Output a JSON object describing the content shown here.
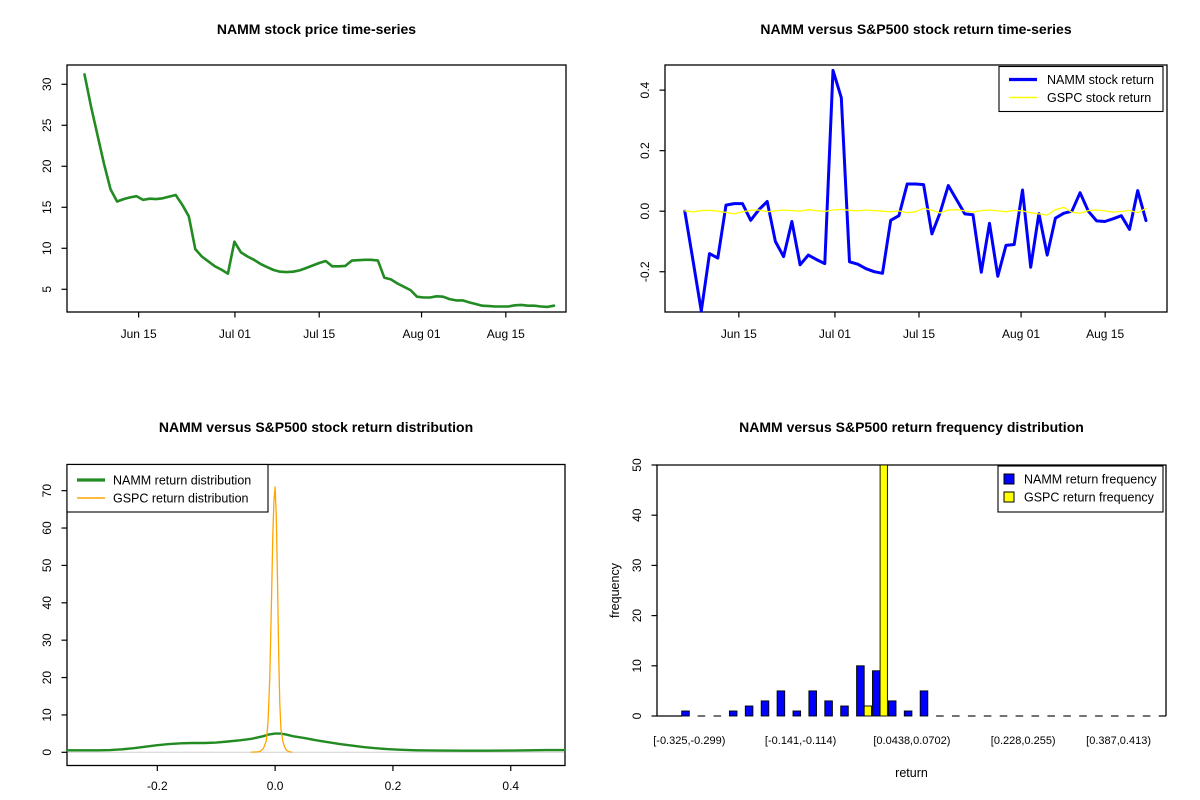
{
  "colors": {
    "namm_green": "#228B22",
    "namm_blue": "#0000FF",
    "gspc_yellow": "#FFFF00",
    "gspc_orange": "#FFA500",
    "axis_black": "#000000",
    "zero_gray": "#CFCFCF",
    "background": "#FFFFFF"
  },
  "chart_data": [
    {
      "id": "price",
      "type": "line",
      "title": "NAMM stock price time-series",
      "x_ticks": [
        {
          "label": "Jun 15",
          "v": 9
        },
        {
          "label": "Jul 01",
          "v": 25
        },
        {
          "label": "Jul 15",
          "v": 39
        },
        {
          "label": "Aug 01",
          "v": 56
        },
        {
          "label": "Aug 15",
          "v": 70
        }
      ],
      "y_ticks": [
        {
          "label": "5",
          "v": 5
        },
        {
          "label": "10",
          "v": 10
        },
        {
          "label": "15",
          "v": 15
        },
        {
          "label": "20",
          "v": 20
        },
        {
          "label": "25",
          "v": 25
        },
        {
          "label": "30",
          "v": 30
        }
      ],
      "xlim": [
        -2.9,
        80
      ],
      "ylim": [
        2.23,
        32.35
      ],
      "series": [
        {
          "name": "NAMM stock price",
          "color": "namm_green",
          "width": 2.6,
          "x_start": 0,
          "x_end": 78,
          "values": [
            31.2,
            27.3,
            23.8,
            20.3,
            17.2,
            15.7,
            16.0,
            16.2,
            16.35,
            15.9,
            16.05,
            16.0,
            16.1,
            16.3,
            16.5,
            15.3,
            13.9,
            9.9,
            9.0,
            8.4,
            7.8,
            7.4,
            6.9,
            10.8,
            9.5,
            9.0,
            8.6,
            8.1,
            7.7,
            7.35,
            7.15,
            7.1,
            7.15,
            7.3,
            7.6,
            7.9,
            8.2,
            8.45,
            7.8,
            7.8,
            7.85,
            8.5,
            8.55,
            8.6,
            8.6,
            8.5,
            6.4,
            6.2,
            5.7,
            5.3,
            4.9,
            4.1,
            4.0,
            4.0,
            4.15,
            4.1,
            3.8,
            3.65,
            3.65,
            3.4,
            3.2,
            3.0,
            2.95,
            2.9,
            2.9,
            2.9,
            3.05,
            3.1,
            3.0,
            3.0,
            2.9,
            2.85,
            3.0
          ]
        }
      ]
    },
    {
      "id": "returns",
      "type": "line",
      "title": "NAMM versus S&P500 stock return time-series",
      "x_ticks": [
        {
          "label": "Jun 15",
          "v": 9
        },
        {
          "label": "Jul 01",
          "v": 25
        },
        {
          "label": "Jul 15",
          "v": 39
        },
        {
          "label": "Aug 01",
          "v": 56
        },
        {
          "label": "Aug 15",
          "v": 70
        }
      ],
      "y_ticks": [
        {
          "label": "-0.2",
          "v": -0.2
        },
        {
          "label": "0.0",
          "v": 0.0
        },
        {
          "label": "0.2",
          "v": 0.2
        },
        {
          "label": "0.4",
          "v": 0.4
        }
      ],
      "xlim": [
        -3.3,
        80.3
      ],
      "ylim": [
        -0.333,
        0.483
      ],
      "legend": {
        "position": "topright",
        "items": [
          {
            "label": "NAMM stock return",
            "color": "namm_blue",
            "sample": "line",
            "width": 3.2
          },
          {
            "label": "GSPC stock return",
            "color": "gspc_yellow",
            "sample": "line",
            "width": 1.4
          }
        ]
      },
      "series": [
        {
          "name": "NAMM stock return",
          "color": "namm_blue",
          "width": 3,
          "x_start": 0,
          "x_end": 76.8,
          "values": [
            0.0,
            -0.165,
            -0.33,
            -0.14,
            -0.155,
            0.02,
            0.025,
            0.025,
            -0.03,
            0.005,
            0.032,
            -0.1,
            -0.15,
            -0.034,
            -0.177,
            -0.145,
            -0.16,
            -0.173,
            0.465,
            0.375,
            -0.167,
            -0.175,
            -0.19,
            -0.2,
            -0.205,
            -0.03,
            -0.015,
            0.09,
            0.09,
            0.088,
            -0.075,
            -0.005,
            0.085,
            0.038,
            -0.009,
            -0.012,
            -0.202,
            -0.04,
            -0.215,
            -0.113,
            -0.11,
            0.07,
            -0.185,
            -0.008,
            -0.145,
            -0.023,
            -0.007,
            0.0,
            0.061,
            0.0,
            -0.032,
            -0.034,
            -0.025,
            -0.015,
            -0.06,
            0.068,
            -0.031
          ]
        },
        {
          "name": "GSPC stock return",
          "color": "gspc_yellow",
          "width": 1.3,
          "x_start": 0,
          "x_end": 76.8,
          "values": [
            0.001,
            -0.002,
            0.002,
            0.003,
            0.0,
            -0.004,
            -0.009,
            -0.002,
            0.003,
            0.004,
            -0.002,
            0.001,
            0.004,
            0.002,
            0.0,
            0.005,
            0.002,
            -0.001,
            0.004,
            0.006,
            0.003,
            0.001,
            0.004,
            0.002,
            0.0,
            -0.002,
            0.001,
            -0.005,
            -0.002,
            0.01,
            0.003,
            -0.006,
            0.004,
            0.005,
            0.001,
            -0.003,
            0.002,
            0.004,
            0.001,
            -0.002,
            0.003,
            0.001,
            -0.005,
            -0.009,
            -0.013,
            0.005,
            0.013,
            -0.003,
            -0.007,
            0.002,
            0.004,
            0.001,
            -0.003,
            -0.001,
            0.003,
            -0.005,
            0.009
          ]
        }
      ]
    },
    {
      "id": "distribution",
      "type": "density",
      "title": "NAMM versus S&P500 stock return distribution",
      "x_ticks": [
        {
          "label": "-0.2",
          "v": -0.2
        },
        {
          "label": "0.0",
          "v": 0.0
        },
        {
          "label": "0.2",
          "v": 0.2
        },
        {
          "label": "0.4",
          "v": 0.4
        }
      ],
      "y_ticks": [
        {
          "label": "0",
          "v": 0
        },
        {
          "label": "10",
          "v": 10
        },
        {
          "label": "20",
          "v": 20
        },
        {
          "label": "30",
          "v": 30
        },
        {
          "label": "40",
          "v": 40
        },
        {
          "label": "50",
          "v": 50
        },
        {
          "label": "60",
          "v": 60
        },
        {
          "label": "70",
          "v": 70
        }
      ],
      "xlim": [
        -0.3533,
        0.4921
      ],
      "ylim": [
        -3.53,
        77.0
      ],
      "zero_line": true,
      "legend": {
        "position": "topleft",
        "items": [
          {
            "label": "NAMM return distribution",
            "color": "namm_green",
            "sample": "line",
            "width": 3.2
          },
          {
            "label": "GSPC return distribution",
            "color": "gspc_orange",
            "sample": "line",
            "width": 1.4
          }
        ]
      },
      "series": [
        {
          "name": "NAMM return distribution",
          "color": "namm_green",
          "width": 2.4,
          "points": [
            [
              -0.353,
              0.55
            ],
            [
              -0.33,
              0.55
            ],
            [
              -0.3,
              0.55
            ],
            [
              -0.28,
              0.6
            ],
            [
              -0.26,
              0.8
            ],
            [
              -0.24,
              1.1
            ],
            [
              -0.22,
              1.5
            ],
            [
              -0.2,
              1.9
            ],
            [
              -0.18,
              2.2
            ],
            [
              -0.16,
              2.4
            ],
            [
              -0.14,
              2.5
            ],
            [
              -0.12,
              2.5
            ],
            [
              -0.1,
              2.6
            ],
            [
              -0.08,
              2.9
            ],
            [
              -0.06,
              3.2
            ],
            [
              -0.04,
              3.6
            ],
            [
              -0.02,
              4.3
            ],
            [
              -0.01,
              4.8
            ],
            [
              0.0,
              5.0
            ],
            [
              0.01,
              5.0
            ],
            [
              0.02,
              4.7
            ],
            [
              0.03,
              4.3
            ],
            [
              0.05,
              3.8
            ],
            [
              0.07,
              3.2
            ],
            [
              0.09,
              2.7
            ],
            [
              0.11,
              2.2
            ],
            [
              0.13,
              1.8
            ],
            [
              0.15,
              1.4
            ],
            [
              0.17,
              1.1
            ],
            [
              0.19,
              0.85
            ],
            [
              0.21,
              0.7
            ],
            [
              0.24,
              0.55
            ],
            [
              0.28,
              0.45
            ],
            [
              0.32,
              0.42
            ],
            [
              0.36,
              0.42
            ],
            [
              0.4,
              0.45
            ],
            [
              0.43,
              0.55
            ],
            [
              0.46,
              0.6
            ],
            [
              0.492,
              0.6
            ]
          ]
        },
        {
          "name": "GSPC return distribution",
          "color": "gspc_orange",
          "width": 1.3,
          "points": [
            [
              -0.04,
              0.05
            ],
            [
              -0.03,
              0.1
            ],
            [
              -0.025,
              0.3
            ],
            [
              -0.02,
              1.0
            ],
            [
              -0.015,
              3.0
            ],
            [
              -0.012,
              8.0
            ],
            [
              -0.009,
              20.0
            ],
            [
              -0.006,
              42.0
            ],
            [
              -0.004,
              58.0
            ],
            [
              -0.002,
              67.0
            ],
            [
              0.0,
              71.0
            ],
            [
              0.002,
              63.0
            ],
            [
              0.004,
              46.0
            ],
            [
              0.006,
              26.0
            ],
            [
              0.008,
              13.0
            ],
            [
              0.01,
              6.0
            ],
            [
              0.013,
              3.0
            ],
            [
              0.016,
              1.5
            ],
            [
              0.019,
              0.6
            ],
            [
              0.023,
              0.2
            ],
            [
              0.028,
              0.05
            ]
          ]
        }
      ]
    },
    {
      "id": "histogram",
      "type": "bar",
      "title": "NAMM versus S&P500 return frequency distribution",
      "xlabel": "return",
      "ylabel": "frequency",
      "bins": {
        "start": -0.325,
        "width": 0.0264,
        "count": 30
      },
      "y_ticks": [
        {
          "label": "0",
          "v": 0
        },
        {
          "label": "10",
          "v": 10
        },
        {
          "label": "20",
          "v": 20
        },
        {
          "label": "30",
          "v": 30
        },
        {
          "label": "40",
          "v": 40
        },
        {
          "label": "50",
          "v": 50
        }
      ],
      "ylim": [
        0,
        50
      ],
      "x_tick_bins": [
        1,
        8,
        15,
        22,
        28
      ],
      "x_tick_labels": [
        "[-0.325,-0.299)",
        "[-0.141,-0.114)",
        "[0.0438,0.0702)",
        "[0.228,0.255)",
        "[0.387,0.413)"
      ],
      "legend": {
        "position": "topright",
        "items": [
          {
            "label": "NAMM return frequency",
            "color": "namm_blue",
            "sample": "box"
          },
          {
            "label": "GSPC return frequency",
            "color": "gspc_yellow",
            "sample": "box"
          }
        ]
      },
      "series": [
        {
          "name": "NAMM return frequency",
          "color": "namm_blue",
          "values": [
            1,
            0,
            0,
            1,
            2,
            3,
            5,
            1,
            5,
            3,
            2,
            10,
            9,
            3,
            1,
            5,
            0,
            0,
            0,
            0,
            0,
            0,
            0,
            0,
            0,
            0,
            0,
            0,
            0,
            0
          ]
        },
        {
          "name": "GSPC return frequency",
          "color": "gspc_yellow",
          "values": [
            0,
            0,
            0,
            0,
            0,
            0,
            0,
            0,
            0,
            0,
            0,
            2,
            52,
            0,
            0,
            0,
            0,
            0,
            0,
            0,
            0,
            0,
            0,
            0,
            0,
            0,
            0,
            0,
            0,
            0
          ]
        }
      ]
    }
  ]
}
